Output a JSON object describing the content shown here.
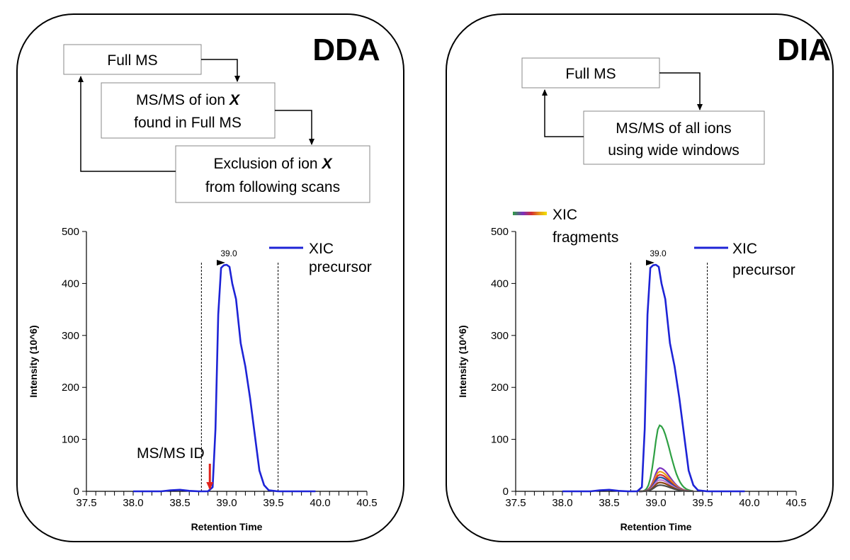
{
  "panels": [
    {
      "id": "dda",
      "title": "DDA",
      "flow": {
        "full_ms": "Full MS",
        "msms_line1_prefix": "MS/MS of ion ",
        "msms_line1_var": "X",
        "msms_line2": "found in Full MS",
        "excl_line1_prefix": "Exclusion of ion ",
        "excl_line1_var": "X",
        "excl_line2": "from following scans"
      },
      "legend": {
        "line1": "XIC",
        "line2": "precursor"
      },
      "annotation": "MS/MS ID",
      "peak_label": "39.0"
    },
    {
      "id": "dia",
      "title": "DIA",
      "flow": {
        "full_ms": "Full MS",
        "msms_line1": "MS/MS of all ions",
        "msms_line2": "using wide windows"
      },
      "legend_fragments": {
        "line1": "XIC",
        "line2": "fragments"
      },
      "legend": {
        "line1": "XIC",
        "line2": "precursor"
      },
      "peak_label": "39.0"
    }
  ],
  "colors": {
    "precursor": "#1d23d6",
    "arrow": "#e0231c",
    "fragments": [
      "#2ea043",
      "#7b2fbf",
      "#e8a317",
      "#d42f2f",
      "#1e4fa0",
      "#c37ad6",
      "#8b4513",
      "#4a4a4a"
    ]
  },
  "chart_data": [
    {
      "type": "line",
      "panel": "dda",
      "xlabel": "Retention Time",
      "ylabel": "Intensity (10^6)",
      "xlim": [
        37.5,
        40.5
      ],
      "ylim": [
        0,
        500
      ],
      "x_ticks": [
        "37.5",
        "38.0",
        "38.5",
        "39.0",
        "39.5",
        "40.0",
        "40.5"
      ],
      "y_ticks": [
        "0",
        "100",
        "200",
        "300",
        "400",
        "500"
      ],
      "window_lines": [
        38.73,
        39.55
      ],
      "apex": {
        "x": 39.0,
        "y": 436,
        "label": "39.0"
      },
      "msms_id_x": 38.82,
      "series": [
        {
          "name": "XIC precursor",
          "x": [
            38.0,
            38.2,
            38.3,
            38.4,
            38.5,
            38.6,
            38.7,
            38.8,
            38.85,
            38.88,
            38.91,
            38.94,
            38.97,
            39.0,
            39.03,
            39.06,
            39.1,
            39.15,
            39.2,
            39.25,
            39.3,
            39.35,
            39.4,
            39.45,
            39.55,
            39.7,
            39.95
          ],
          "y": [
            0,
            0,
            0,
            2,
            3,
            1,
            0,
            0,
            8,
            120,
            340,
            430,
            435,
            436,
            432,
            400,
            370,
            285,
            240,
            180,
            110,
            40,
            12,
            2,
            0,
            0,
            0
          ]
        }
      ]
    },
    {
      "type": "line",
      "panel": "dia",
      "xlabel": "Retention Time",
      "ylabel": "Intensity (10^6)",
      "xlim": [
        37.5,
        40.5
      ],
      "ylim": [
        0,
        500
      ],
      "x_ticks": [
        "37.5",
        "38.0",
        "38.5",
        "39.0",
        "39.5",
        "40.0",
        "40.5"
      ],
      "y_ticks": [
        "0",
        "100",
        "200",
        "300",
        "400",
        "500"
      ],
      "window_lines": [
        38.73,
        39.55
      ],
      "apex": {
        "x": 39.0,
        "y": 436,
        "label": "39.0"
      },
      "series": [
        {
          "name": "XIC precursor",
          "x": [
            38.0,
            38.2,
            38.3,
            38.4,
            38.5,
            38.6,
            38.7,
            38.8,
            38.85,
            38.88,
            38.91,
            38.94,
            38.97,
            39.0,
            39.03,
            39.06,
            39.1,
            39.15,
            39.2,
            39.25,
            39.3,
            39.35,
            39.4,
            39.45,
            39.55,
            39.7,
            39.95
          ],
          "y": [
            0,
            0,
            0,
            2,
            3,
            1,
            0,
            0,
            8,
            120,
            340,
            430,
            435,
            436,
            432,
            400,
            370,
            285,
            240,
            180,
            110,
            40,
            12,
            2,
            0,
            0,
            0
          ]
        }
      ],
      "fragments": [
        {
          "name": "fragment-1",
          "peak": 127
        },
        {
          "name": "fragment-2",
          "peak": 45
        },
        {
          "name": "fragment-3",
          "peak": 38
        },
        {
          "name": "fragment-4",
          "peak": 32
        },
        {
          "name": "fragment-5",
          "peak": 27
        },
        {
          "name": "fragment-6",
          "peak": 22
        },
        {
          "name": "fragment-7",
          "peak": 17
        },
        {
          "name": "fragment-8",
          "peak": 12
        }
      ]
    }
  ]
}
